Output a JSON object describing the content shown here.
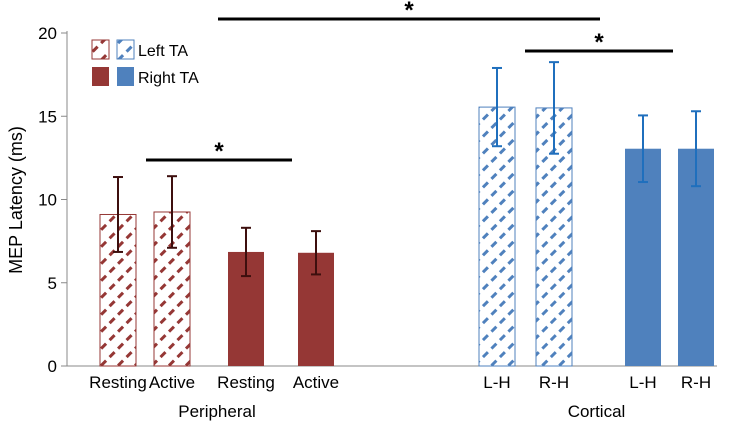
{
  "chart_data": {
    "type": "bar",
    "ylabel": "MEP Latency (ms)",
    "ylim": [
      0,
      20
    ],
    "yticks": [
      0,
      5,
      10,
      15,
      20
    ],
    "legend": {
      "position": "top-left",
      "entries": [
        {
          "label": "Left TA",
          "pattern": "hatched"
        },
        {
          "label": "Right TA",
          "pattern": "solid"
        }
      ]
    },
    "groups": [
      {
        "name": "Peripheral",
        "color": "#953735",
        "error_color": "#3d0f0e",
        "bars": [
          {
            "label": "Resting",
            "side": "Left TA",
            "value": 9.1,
            "err": 2.25
          },
          {
            "label": "Active",
            "side": "Left TA",
            "value": 9.25,
            "err": 2.15
          },
          {
            "label": "Resting",
            "side": "Right TA",
            "value": 6.85,
            "err": 1.45
          },
          {
            "label": "Active",
            "side": "Right TA",
            "value": 6.8,
            "err": 1.3
          }
        ]
      },
      {
        "name": "Cortical",
        "color": "#4f81bd",
        "error_color": "#1f6fbd",
        "bars": [
          {
            "label": "L-H",
            "side": "Left TA",
            "value": 15.55,
            "err": 2.35
          },
          {
            "label": "R-H",
            "side": "Left TA",
            "value": 15.5,
            "err": 2.75
          },
          {
            "label": "L-H",
            "side": "Right TA",
            "value": 13.05,
            "err": 2.0
          },
          {
            "label": "R-H",
            "side": "Right TA",
            "value": 13.05,
            "err": 2.25
          }
        ]
      }
    ],
    "significance": [
      {
        "label": "*",
        "from_bar": 1,
        "to_bar": 2
      },
      {
        "label": "*",
        "from_bar": 1,
        "to_bar": 5
      },
      {
        "label": "*",
        "from_bar": 5,
        "to_bar": 6
      }
    ]
  }
}
